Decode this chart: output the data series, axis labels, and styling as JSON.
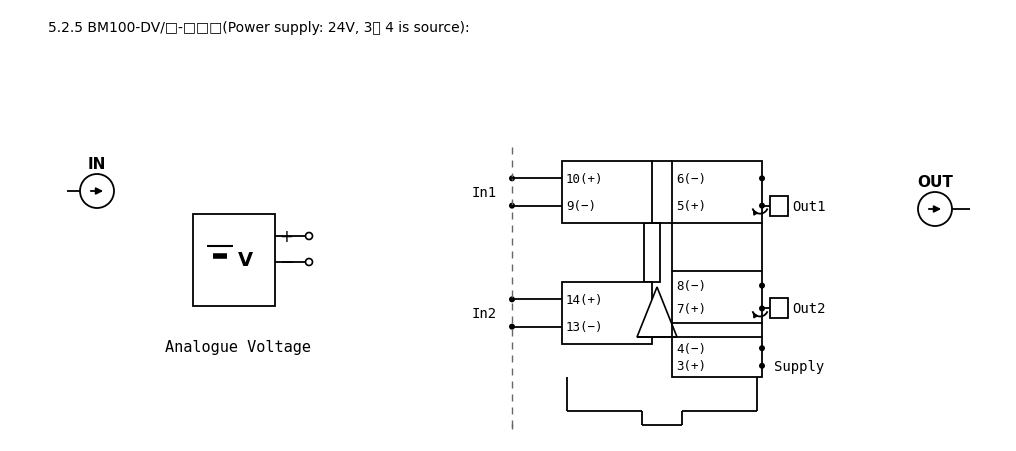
{
  "title": "5.2.5 BM100-DV/□-□□□(Power supply: 24V, 3、 4 is source):",
  "bg": "#ffffff",
  "lc": "#000000",
  "analogue_voltage": "Analogue Voltage",
  "in_label": "IN",
  "out_label": "OUT",
  "in1": "In1",
  "in2": "In2",
  "out1": "Out1",
  "out2": "Out2",
  "supply": "Supply",
  "pin10": "10(+)",
  "pin9": "9(−)",
  "pin14": "14(+)",
  "pin13": "13(−)",
  "pin6": "6(−)",
  "pin5": "5(+)",
  "pin8": "8(−)",
  "pin7": "7(+)",
  "pin4": "4(−)",
  "pin3": "3(+)"
}
